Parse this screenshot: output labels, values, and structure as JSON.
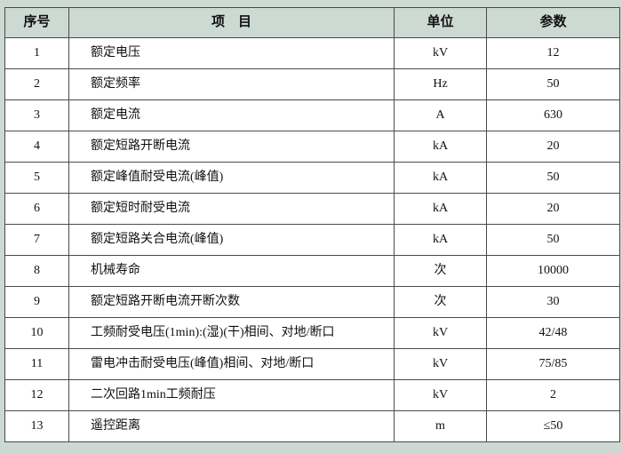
{
  "table": {
    "headers": {
      "no": "序号",
      "item": "项　目",
      "unit": "单位",
      "value": "参数"
    },
    "rows": [
      {
        "no": "1",
        "item": "额定电压",
        "unit": "kV",
        "value": "12"
      },
      {
        "no": "2",
        "item": "额定频率",
        "unit": "Hz",
        "value": "50"
      },
      {
        "no": "3",
        "item": "额定电流",
        "unit": "A",
        "value": "630"
      },
      {
        "no": "4",
        "item": "额定短路开断电流",
        "unit": "kA",
        "value": "20"
      },
      {
        "no": "5",
        "item": "额定峰值耐受电流(峰值)",
        "unit": "kA",
        "value": "50"
      },
      {
        "no": "6",
        "item": "额定短时耐受电流",
        "unit": "kA",
        "value": "20"
      },
      {
        "no": "7",
        "item": "额定短路关合电流(峰值)",
        "unit": "kA",
        "value": "50"
      },
      {
        "no": "8",
        "item": "机械寿命",
        "unit": "次",
        "value": "10000"
      },
      {
        "no": "9",
        "item": "额定短路开断电流开断次数",
        "unit": "次",
        "value": "30"
      },
      {
        "no": "10",
        "item": "工频耐受电压(1min):(湿)(干)相间、对地/断口",
        "unit": "kV",
        "value": "42/48"
      },
      {
        "no": "11",
        "item": "雷电冲击耐受电压(峰值)相间、对地/断口",
        "unit": "kV",
        "value": "75/85"
      },
      {
        "no": "12",
        "item": "二次回路1min工频耐压",
        "unit": "kV",
        "value": "2"
      },
      {
        "no": "13",
        "item": "遥控距离",
        "unit": "m",
        "value": "≤50"
      }
    ]
  }
}
